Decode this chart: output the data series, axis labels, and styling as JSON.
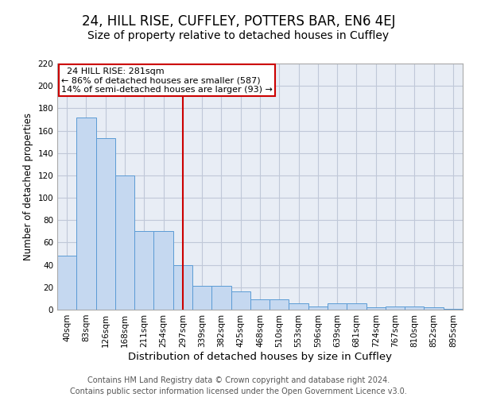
{
  "title": "24, HILL RISE, CUFFLEY, POTTERS BAR, EN6 4EJ",
  "subtitle": "Size of property relative to detached houses in Cuffley",
  "xlabel": "Distribution of detached houses by size in Cuffley",
  "ylabel": "Number of detached properties",
  "categories": [
    "40sqm",
    "83sqm",
    "126sqm",
    "168sqm",
    "211sqm",
    "254sqm",
    "297sqm",
    "339sqm",
    "382sqm",
    "425sqm",
    "468sqm",
    "510sqm",
    "553sqm",
    "596sqm",
    "639sqm",
    "681sqm",
    "724sqm",
    "767sqm",
    "810sqm",
    "852sqm",
    "895sqm"
  ],
  "values": [
    48,
    172,
    153,
    120,
    70,
    70,
    40,
    21,
    21,
    16,
    9,
    9,
    6,
    3,
    6,
    6,
    2,
    3,
    3,
    2,
    1
  ],
  "bar_color": "#c5d8f0",
  "bar_edge_color": "#5b9bd5",
  "vline_x": 6,
  "vline_color": "#cc0000",
  "annotation_line1": "  24 HILL RISE: 281sqm",
  "annotation_line2": "← 86% of detached houses are smaller (587)",
  "annotation_line3": "14% of semi-detached houses are larger (93) →",
  "annotation_box_color": "#cc0000",
  "ylim": [
    0,
    220
  ],
  "yticks": [
    0,
    20,
    40,
    60,
    80,
    100,
    120,
    140,
    160,
    180,
    200,
    220
  ],
  "grid_color": "#c0c8d8",
  "background_color": "#e8edf5",
  "footer_line1": "Contains HM Land Registry data © Crown copyright and database right 2024.",
  "footer_line2": "Contains public sector information licensed under the Open Government Licence v3.0.",
  "title_fontsize": 12,
  "subtitle_fontsize": 10,
  "xlabel_fontsize": 9.5,
  "ylabel_fontsize": 8.5,
  "tick_fontsize": 7.5,
  "annotation_fontsize": 8,
  "footer_fontsize": 7
}
